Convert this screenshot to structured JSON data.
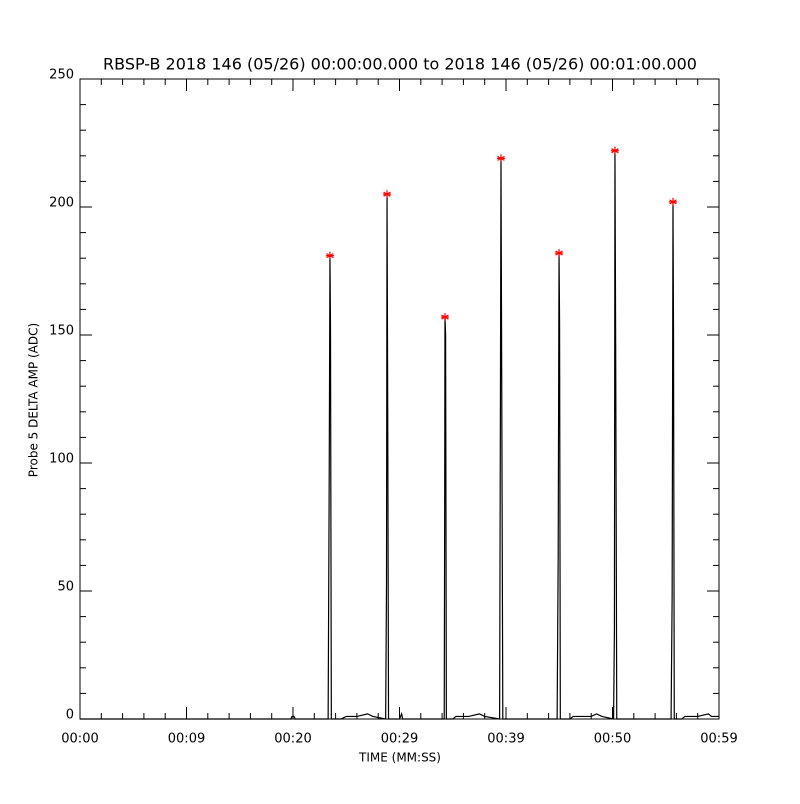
{
  "chart_data": {
    "type": "line",
    "title": "RBSP-B 2018 146 (05/26) 00:00:00.000 to 2018 146 (05/26) 00:01:00.000",
    "x_label": "TIME (MM:SS)",
    "y_label": "Probe 5 DELTA AMP (ADC)",
    "xlim": [
      0,
      60
    ],
    "xticks": [
      {
        "value": 0,
        "label": "00:00"
      },
      {
        "value": 10,
        "label": "00:09"
      },
      {
        "value": 20,
        "label": "00:20"
      },
      {
        "value": 30,
        "label": "00:29"
      },
      {
        "value": 40,
        "label": "00:39"
      },
      {
        "value": 50,
        "label": "00:50"
      },
      {
        "value": 60,
        "label": "00:59"
      }
    ],
    "ylim": [
      0,
      250
    ],
    "yticks": [
      0,
      50,
      100,
      150,
      200,
      250
    ],
    "series": [
      {
        "color": "#000000",
        "x": [
          0,
          19.8,
          19.9,
          20.1,
          20.2,
          23.3,
          23.4,
          23.47,
          23.52,
          23.6,
          24.5,
          25,
          26,
          27,
          27.5,
          28.7,
          28.78,
          28.83,
          28.9,
          28.97,
          30,
          30.2,
          30.3,
          34.2,
          34.24,
          34.27,
          34.33,
          34.4,
          35,
          35.3,
          36.5,
          37.5,
          38,
          39.4,
          39.48,
          39.53,
          39.6,
          39.7,
          44.8,
          44.9,
          44.98,
          45.03,
          45.1,
          46,
          46.3,
          48,
          48.5,
          49,
          50.1,
          50.18,
          50.23,
          50.3,
          50.4,
          55.5,
          55.6,
          55.68,
          55.73,
          55.8,
          56.5,
          56.8,
          58,
          59,
          59.3,
          60
        ],
        "values": [
          0,
          0,
          1,
          1,
          0,
          0,
          95,
          181,
          153,
          0,
          0,
          1,
          1,
          2,
          1,
          0,
          53,
          205,
          112,
          0,
          0,
          2,
          0,
          0,
          78,
          157,
          150,
          0,
          0,
          1,
          1,
          2,
          1,
          0,
          130,
          219,
          130,
          0,
          0,
          63,
          182,
          155,
          0,
          0,
          1,
          1,
          2,
          1,
          0,
          35,
          222,
          144,
          0,
          0,
          48,
          202,
          150,
          0,
          0,
          1,
          1,
          2,
          1,
          1
        ]
      },
      {
        "color": "#ff0000",
        "marker": "asterisk",
        "x": [
          23.47,
          28.83,
          34.27,
          39.53,
          44.98,
          50.23,
          55.68
        ],
        "values": [
          181,
          205,
          157,
          219,
          182,
          222,
          202
        ]
      }
    ]
  }
}
